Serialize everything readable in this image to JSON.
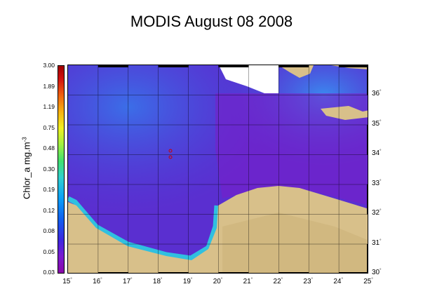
{
  "title": "MODIS August 08 2008",
  "colorbar": {
    "label": "Chlor_a mg.m",
    "label_sup": "-3",
    "ticks": [
      "3.00",
      "1.89",
      "1.19",
      "0.75",
      "0.48",
      "0.30",
      "0.19",
      "0.12",
      "0.08",
      "0.05",
      "0.03"
    ]
  },
  "lon_ticks": [
    "15",
    "16",
    "17",
    "18",
    "19",
    "20",
    "21",
    "22",
    "23",
    "24",
    "25"
  ],
  "lat_ticks": [
    "36",
    "35",
    "34",
    "33",
    "32",
    "31",
    "30"
  ],
  "degree_symbol": "°",
  "colors": {
    "sea": "#5a2fd0",
    "land": "#d8c08a",
    "coastal_bloom": "#30c0e0"
  }
}
